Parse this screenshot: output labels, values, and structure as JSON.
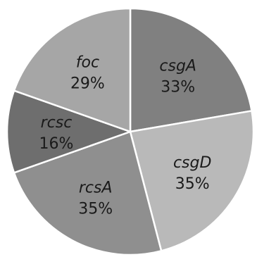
{
  "chart_data": {
    "type": "pie",
    "title": "",
    "slices": [
      {
        "name": "csgA",
        "percent_label": "33%",
        "value": 33,
        "color": "#808080"
      },
      {
        "name": "csgD",
        "percent_label": "35%",
        "value": 35,
        "color": "#b9b9b9"
      },
      {
        "name": "rcsA",
        "percent_label": "35%",
        "value": 35,
        "color": "#8f8f8f"
      },
      {
        "name": "rcsc",
        "percent_label": "16%",
        "value": 16,
        "color": "#6e6e6e"
      },
      {
        "name": "foc",
        "percent_label": "29%",
        "value": 29,
        "color": "#a6a6a6"
      }
    ],
    "start_angle_deg": 0,
    "direction": "clockwise",
    "legend": "none",
    "labels": "inside"
  }
}
